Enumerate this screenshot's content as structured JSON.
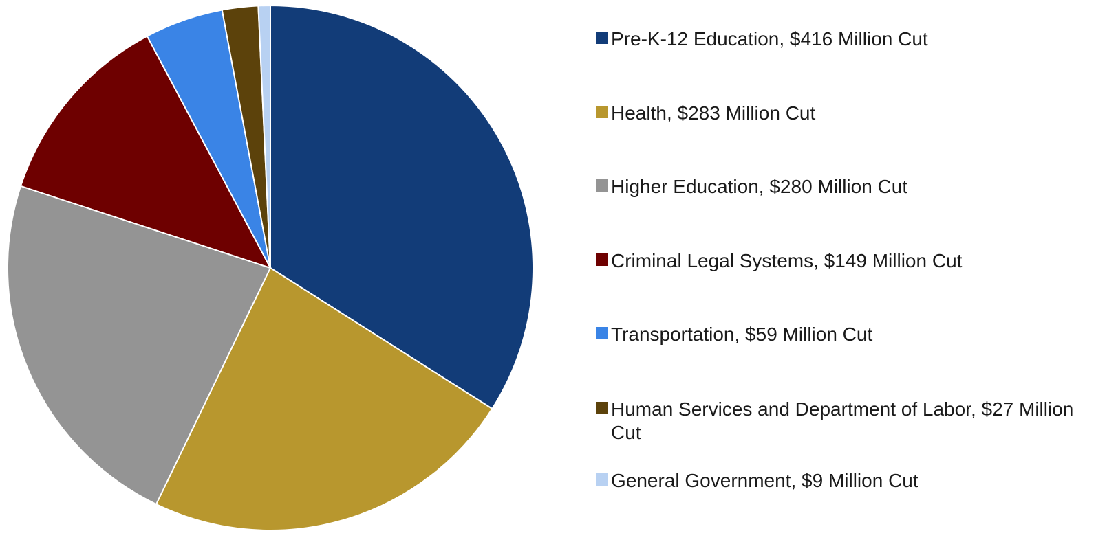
{
  "chart_data": {
    "type": "pie",
    "title": "",
    "legend_position": "right",
    "start_angle": "12 o'clock",
    "direction": "clockwise",
    "slices": [
      {
        "label": "Pre-K-12 Education, $416 Million Cut",
        "value": 416,
        "color": "#123c78"
      },
      {
        "label": "Health, $283 Million Cut",
        "value": 283,
        "color": "#b8972e"
      },
      {
        "label": "Higher Education, $280 Million Cut",
        "value": 280,
        "color": "#949494"
      },
      {
        "label": "Criminal Legal Systems, $149 Million Cut",
        "value": 149,
        "color": "#6e0000"
      },
      {
        "label": "Transportation, $59 Million Cut",
        "value": 59,
        "color": "#3a84e6"
      },
      {
        "label": "Human Services and Department of Labor, $27 Million Cut",
        "value": 27,
        "color": "#5c420b"
      },
      {
        "label": "General Government, $9 Million Cut",
        "value": 9,
        "color": "#b8d1f2"
      }
    ]
  }
}
